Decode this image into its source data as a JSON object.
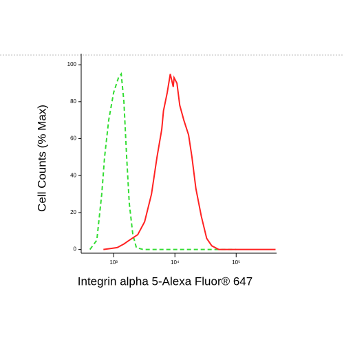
{
  "chart_data": {
    "type": "line",
    "log_x": true,
    "xlabel": "Integrin alpha 5-Alexa Fluor® 647",
    "ylabel": "Cell Counts (% Max)",
    "xlim": [
      295,
      457000
    ],
    "ylim": [
      -2,
      106
    ],
    "xticks": [
      {
        "value": 1000,
        "label": "10³"
      },
      {
        "value": 10000,
        "label": "10⁴"
      },
      {
        "value": 100000,
        "label": "10⁵"
      }
    ],
    "yticks": [
      0,
      20,
      40,
      60,
      80,
      100
    ],
    "series": [
      {
        "color": "#33dd33",
        "dash": true,
        "x": [
          410,
          530,
          640,
          710,
          830,
          1000,
          1200,
          1330,
          1470,
          1630,
          1800,
          2060,
          2350,
          3000,
          10000,
          50000,
          100000
        ],
        "values": [
          0,
          5,
          30,
          50,
          70,
          85,
          93,
          95,
          80,
          50,
          25,
          8,
          1,
          0,
          0,
          0,
          0
        ]
      },
      {
        "color": "#ff2222",
        "dash": false,
        "x": [
          680,
          1140,
          1470,
          1800,
          2470,
          3200,
          4150,
          5100,
          6100,
          6500,
          7500,
          8400,
          9400,
          9700,
          10800,
          12000,
          14000,
          16700,
          19000,
          22000,
          27000,
          33000,
          40000,
          52000,
          440000
        ],
        "values": [
          0,
          1,
          3,
          5,
          8,
          15,
          30,
          50,
          65,
          75,
          85,
          95,
          88,
          93,
          90,
          78,
          70,
          62,
          50,
          33,
          18,
          6,
          2,
          0,
          0
        ]
      }
    ]
  }
}
